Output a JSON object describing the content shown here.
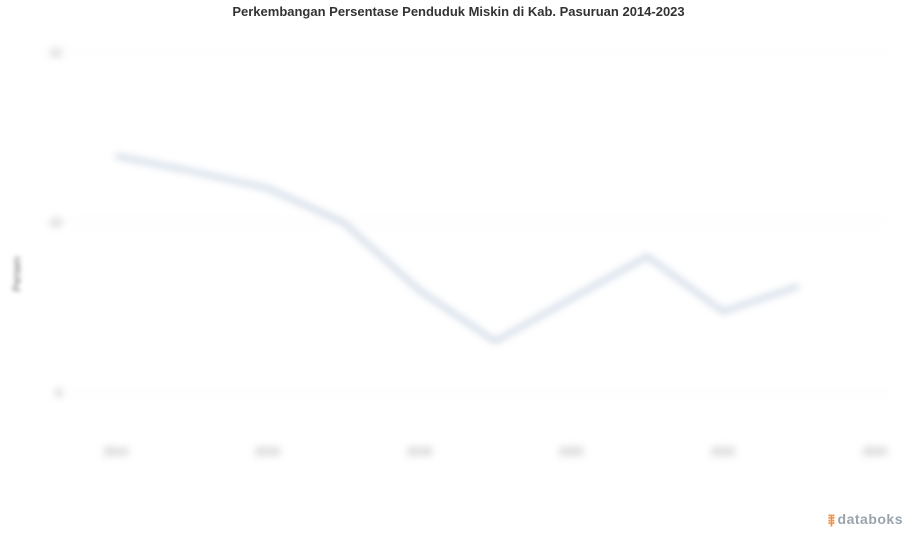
{
  "title": "Perkembangan Persentase Penduduk Miskin di Kab. Pasuruan 2014-2023",
  "ylabel": "Persen",
  "chart": {
    "type": "line",
    "background_color": "#ffffff",
    "grid_color": "#e8e8e8",
    "line_color": "#aebfd4",
    "line_width": 3,
    "title_fontsize": 13,
    "label_fontsize": 11,
    "axis_text_color": "#888888",
    "x_values": [
      2014,
      2015,
      2016,
      2017,
      2018,
      2019,
      2020,
      2021,
      2022,
      2023
    ],
    "x_ticks": [
      2014,
      2016,
      2018,
      2020,
      2022,
      2024
    ],
    "y_values": [
      10.78,
      10.6,
      10.4,
      10.0,
      9.2,
      8.6,
      9.1,
      9.6,
      8.95,
      9.25
    ],
    "y_ticks": [
      8,
      10,
      12
    ],
    "ylim": [
      7.5,
      12.2
    ],
    "xlim": [
      2013.4,
      2024.2
    ]
  },
  "watermark": {
    "text": "databoks",
    "icon_color": "#f08c3c",
    "text_color": "#9aa4ad"
  }
}
